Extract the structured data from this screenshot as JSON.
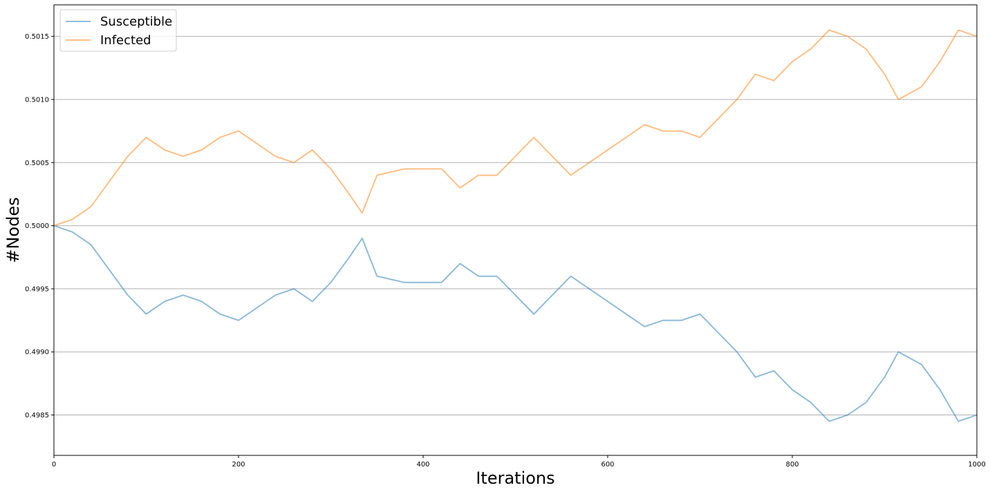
{
  "chart_data": {
    "type": "line",
    "xlabel": "Iterations",
    "ylabel": "#Nodes",
    "xlim": [
      0,
      1000
    ],
    "ylim": [
      0.49818,
      0.50175
    ],
    "xticks": [
      0,
      200,
      400,
      600,
      800,
      1000
    ],
    "xtick_labels": [
      "0",
      "200",
      "400",
      "600",
      "800",
      "1000"
    ],
    "yticks": [
      0.4985,
      0.499,
      0.4995,
      0.5,
      0.5005,
      0.501,
      0.5015
    ],
    "ytick_labels": [
      "0.4985",
      "0.4990",
      "0.4995",
      "0.5000",
      "0.5005",
      "0.5010",
      "0.5015"
    ],
    "grid": "horizontal",
    "legend_position": "top-left",
    "x": [
      0,
      20,
      40,
      60,
      80,
      100,
      120,
      140,
      160,
      180,
      200,
      220,
      240,
      260,
      280,
      300,
      320,
      334,
      350,
      380,
      400,
      420,
      440,
      460,
      480,
      500,
      520,
      540,
      560,
      580,
      600,
      620,
      640,
      660,
      680,
      700,
      720,
      740,
      760,
      780,
      800,
      820,
      840,
      860,
      880,
      900,
      915,
      940,
      960,
      980,
      1000
    ],
    "series": [
      {
        "name": "Susceptible",
        "color": "#1f77b4",
        "values": [
          0.5,
          0.49995,
          0.49985,
          0.49965,
          0.49945,
          0.4993,
          0.4994,
          0.49945,
          0.4994,
          0.4993,
          0.49925,
          0.49935,
          0.49945,
          0.4995,
          0.4994,
          0.49955,
          0.49975,
          0.4999,
          0.4996,
          0.49955,
          0.49955,
          0.49955,
          0.4997,
          0.4996,
          0.4996,
          0.49945,
          0.4993,
          0.49945,
          0.4996,
          0.4995,
          0.4994,
          0.4993,
          0.4992,
          0.49925,
          0.49925,
          0.4993,
          0.49915,
          0.499,
          0.4988,
          0.49885,
          0.4987,
          0.4986,
          0.49845,
          0.4985,
          0.4986,
          0.4988,
          0.499,
          0.4989,
          0.4987,
          0.49845,
          0.4985
        ]
      },
      {
        "name": "Infected",
        "color": "#ff7f0e",
        "values": [
          0.5,
          0.50005,
          0.50015,
          0.50035,
          0.50055,
          0.5007,
          0.5006,
          0.50055,
          0.5006,
          0.5007,
          0.50075,
          0.50065,
          0.50055,
          0.5005,
          0.5006,
          0.50045,
          0.50025,
          0.5001,
          0.5004,
          0.50045,
          0.50045,
          0.50045,
          0.5003,
          0.5004,
          0.5004,
          0.50055,
          0.5007,
          0.50055,
          0.5004,
          0.5005,
          0.5006,
          0.5007,
          0.5008,
          0.50075,
          0.50075,
          0.5007,
          0.50085,
          0.501,
          0.5012,
          0.50115,
          0.5013,
          0.5014,
          0.50155,
          0.5015,
          0.5014,
          0.5012,
          0.501,
          0.5011,
          0.5013,
          0.50155,
          0.5015
        ]
      }
    ]
  }
}
